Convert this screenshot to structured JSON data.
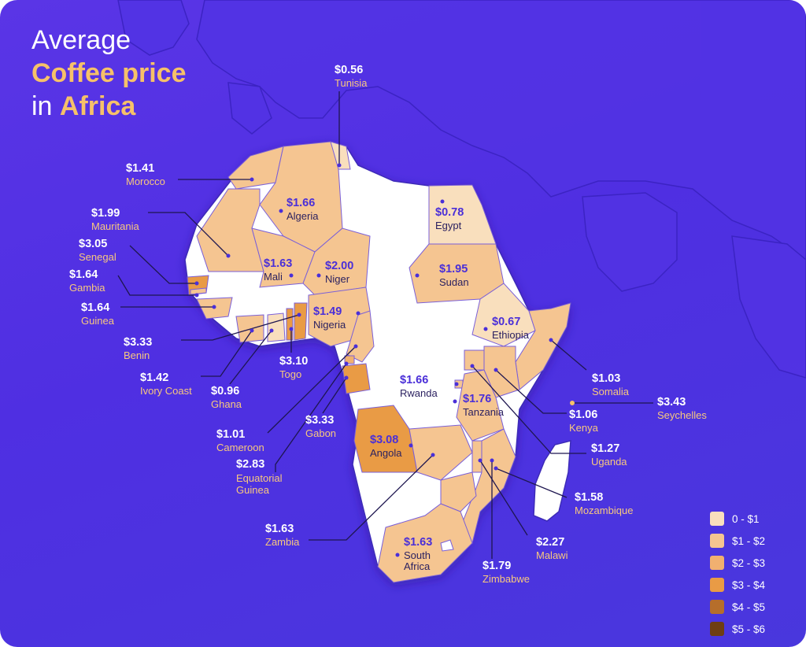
{
  "title": {
    "line1": "Average",
    "line2": "Coffee price",
    "line3_pre": "in ",
    "line3_hl": "Africa"
  },
  "legend": [
    {
      "label": "0 - $1",
      "color": "#f9dfbd"
    },
    {
      "label": "$1 - $2",
      "color": "#f5c591"
    },
    {
      "label": "$2 - $3",
      "color": "#f1b070"
    },
    {
      "label": "$3 - $4",
      "color": "#e99b45"
    },
    {
      "label": "$4 - $5",
      "color": "#b66e2b"
    },
    {
      "label": "$5 - $6",
      "color": "#6e3e12"
    }
  ],
  "countries": [
    {
      "id": "tunisia",
      "name": "Tunisia",
      "price": "$0.56"
    },
    {
      "id": "morocco",
      "name": "Morocco",
      "price": "$1.41"
    },
    {
      "id": "algeria",
      "name": "Algeria",
      "price": "$1.66"
    },
    {
      "id": "egypt",
      "name": "Egypt",
      "price": "$0.78"
    },
    {
      "id": "mauritania",
      "name": "Mauritania",
      "price": "$1.99"
    },
    {
      "id": "senegal",
      "name": "Senegal",
      "price": "$3.05"
    },
    {
      "id": "mali",
      "name": "Mali",
      "price": "$1.63"
    },
    {
      "id": "niger",
      "name": "Niger",
      "price": "$2.00"
    },
    {
      "id": "sudan",
      "name": "Sudan",
      "price": "$1.95"
    },
    {
      "id": "gambia",
      "name": "Gambia",
      "price": "$1.64"
    },
    {
      "id": "guinea",
      "name": "Guinea",
      "price": "$1.64"
    },
    {
      "id": "nigeria",
      "name": "Nigeria",
      "price": "$1.49"
    },
    {
      "id": "ethiopia",
      "name": "Ethiopia",
      "price": "$0.67"
    },
    {
      "id": "benin",
      "name": "Benin",
      "price": "$3.33"
    },
    {
      "id": "togo",
      "name": "Togo",
      "price": "$3.10"
    },
    {
      "id": "ivory_coast",
      "name": "Ivory Coast",
      "price": "$1.42"
    },
    {
      "id": "ghana",
      "name": "Ghana",
      "price": "$0.96"
    },
    {
      "id": "rwanda",
      "name": "Rwanda",
      "price": "$1.66"
    },
    {
      "id": "somalia",
      "name": "Somalia",
      "price": "$1.03"
    },
    {
      "id": "seychelles",
      "name": "Seychelles",
      "price": "$3.43"
    },
    {
      "id": "tanzania",
      "name": "Tanzania",
      "price": "$1.76"
    },
    {
      "id": "kenya",
      "name": "Kenya",
      "price": "$1.06"
    },
    {
      "id": "gabon",
      "name": "Gabon",
      "price": "$3.33"
    },
    {
      "id": "cameroon",
      "name": "Cameroon",
      "price": "$1.01"
    },
    {
      "id": "angola",
      "name": "Angola",
      "price": "$3.08"
    },
    {
      "id": "uganda",
      "name": "Uganda",
      "price": "$1.27"
    },
    {
      "id": "equatorial_guinea",
      "name": "Equatorial Guinea",
      "price": "$2.83"
    },
    {
      "id": "mozambique",
      "name": "Mozambique",
      "price": "$1.58"
    },
    {
      "id": "zambia",
      "name": "Zambia",
      "price": "$1.63"
    },
    {
      "id": "malawi",
      "name": "Malawi",
      "price": "$2.27"
    },
    {
      "id": "south_africa",
      "name": "South Africa",
      "price": "$1.63"
    },
    {
      "id": "zimbabwe",
      "name": "Zimbabwe",
      "price": "$1.79"
    }
  ]
}
